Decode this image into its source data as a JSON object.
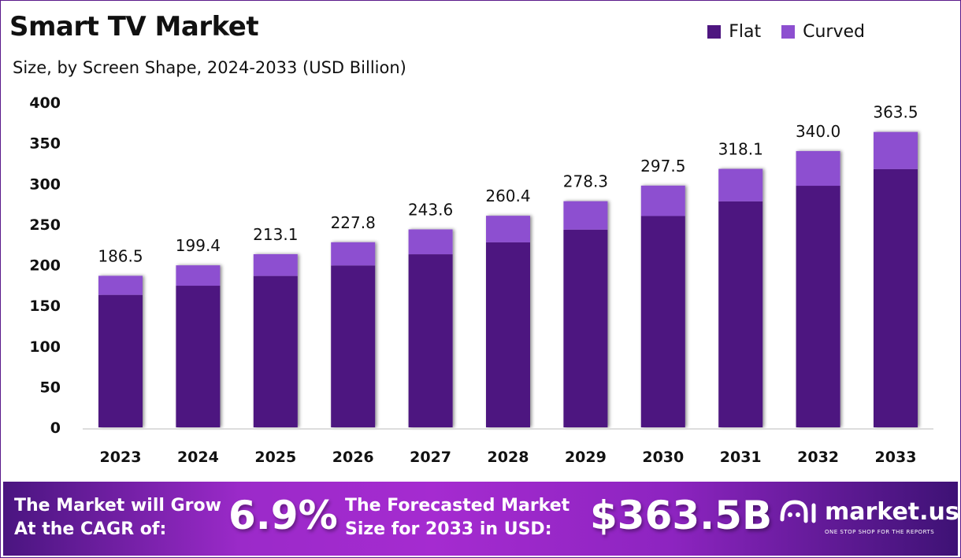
{
  "chart_data": {
    "type": "bar",
    "stacked": true,
    "title": "Smart TV Market",
    "subtitle": "Size, by Screen Shape, 2024-2033 (USD Billion)",
    "categories": [
      "2023",
      "2024",
      "2025",
      "2026",
      "2027",
      "2028",
      "2029",
      "2030",
      "2031",
      "2032",
      "2033"
    ],
    "series": [
      {
        "name": "Flat",
        "color": "#4e1680",
        "values": [
          163.0,
          174.3,
          186.3,
          199.2,
          213.0,
          227.7,
          243.3,
          260.1,
          278.1,
          297.3,
          317.8
        ]
      },
      {
        "name": "Curved",
        "color": "#8d4fd0",
        "values": [
          23.5,
          25.1,
          26.8,
          28.6,
          30.6,
          32.7,
          35.0,
          37.4,
          40.0,
          42.7,
          45.7
        ]
      }
    ],
    "totals": [
      "186.5",
      "199.4",
      "213.1",
      "227.8",
      "243.6",
      "260.4",
      "278.3",
      "297.5",
      "318.1",
      "340.0",
      "363.5"
    ],
    "yticks": [
      "0",
      "50",
      "100",
      "150",
      "200",
      "250",
      "300",
      "350",
      "400"
    ],
    "ylim": [
      0,
      400
    ],
    "grid": false,
    "legend_position": "top-right"
  },
  "footer": {
    "cagr_text_line1": "The Market will Grow",
    "cagr_text_line2": "At the CAGR of:",
    "cagr_value": "6.9%",
    "forecast_text_line1": "The Forecasted Market",
    "forecast_text_line2": "Size for 2033 in USD:",
    "forecast_value": "$363.5B",
    "logo_name": "market.us",
    "logo_tagline": "ONE STOP SHOP FOR THE REPORTS"
  }
}
